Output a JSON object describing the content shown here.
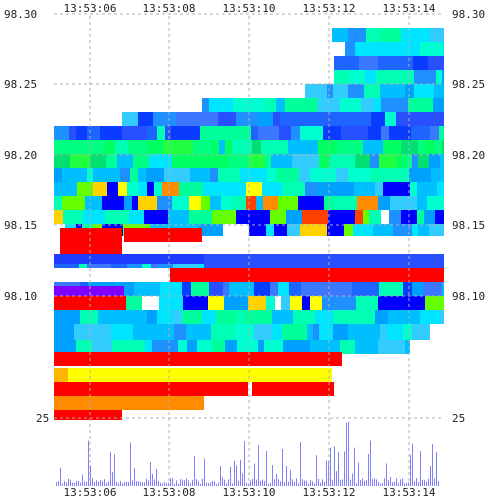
{
  "time_ticks": [
    "13:53:06",
    "13:53:08",
    "13:53:10",
    "13:53:12",
    "13:53:14"
  ],
  "price_ticks": [
    "98.30",
    "98.25",
    "98.20",
    "98.15",
    "98.10"
  ],
  "volume_label": "25",
  "chart_data": {
    "type": "heatmap",
    "description_rows": "order-book depth heatmap by price level over time with volume bars",
    "price_levels": [
      98.3,
      98.25,
      98.2,
      98.15,
      98.1
    ],
    "times": [
      "13:53:06",
      "13:53:08",
      "13:53:10",
      "13:53:12",
      "13:53:14"
    ],
    "colors": {
      "low": "#0000ff",
      "mid_low": "#00c8ff",
      "mid": "#00ff80",
      "mid_high": "#ffff00",
      "high": "#ff8c00",
      "max": "#ff0000",
      "volume": "#8080ff"
    }
  }
}
